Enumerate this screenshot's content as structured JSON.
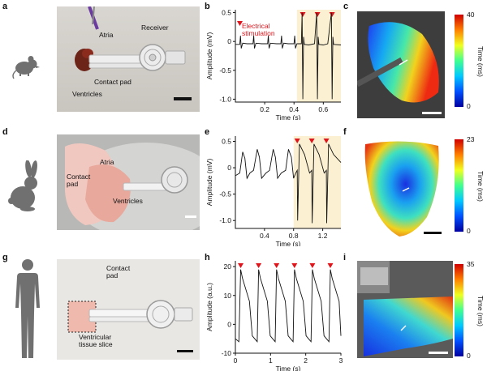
{
  "figure": {
    "panel_letters": [
      "a",
      "b",
      "c",
      "d",
      "e",
      "f",
      "g",
      "h",
      "i"
    ],
    "panel_a": {
      "labels": {
        "atria": "Atria",
        "receiver": "Receiver",
        "contact_pad": "Contact pad",
        "ventricles": "Ventricles"
      }
    },
    "panel_b": {
      "ylabel": "Amplitude (mV)",
      "xlabel": "Time (s)",
      "annotation": "Electrical\nstimulation"
    },
    "panel_c": {
      "colorbar_title": "Time (ms)",
      "colorbar_max": "40",
      "colorbar_min": "0"
    },
    "panel_d": {
      "labels": {
        "atria": "Atria",
        "contact_pad": "Contact\npad",
        "ventricles": "Ventricles"
      }
    },
    "panel_e": {
      "ylabel": "Amplitude (mV)",
      "xlabel": "Time (s)"
    },
    "panel_f": {
      "colorbar_title": "Time (ms)",
      "colorbar_max": "23",
      "colorbar_min": "0"
    },
    "panel_g": {
      "labels": {
        "contact_pad": "Contact\npad",
        "ventricular_slice": "Ventricular\ntissue slice"
      }
    },
    "panel_h": {
      "ylabel": "Amplitude (a.u.)",
      "xlabel": "Time (s)"
    },
    "panel_i": {
      "colorbar_title": "Time (ms)",
      "colorbar_max": "35",
      "colorbar_min": "0"
    },
    "colors": {
      "highlight": "#fbf0d2",
      "stim_marker": "#e0141b",
      "trace": "#111111"
    }
  },
  "chart_data": [
    {
      "type": "line",
      "panel": "b",
      "xlabel": "Time (s)",
      "ylabel": "Amplitude (mV)",
      "xlim": [
        0,
        0.72
      ],
      "ylim": [
        -1.05,
        0.55
      ],
      "xticks": [
        0.2,
        0.4,
        0.6
      ],
      "yticks": [
        0.5,
        0,
        -0.5,
        -1.0
      ],
      "ytick_labels": [
        "0.5",
        "0",
        "-0.5",
        "-1.0"
      ],
      "stimulation_start": 0.42,
      "stimulation_times": [
        0.46,
        0.56,
        0.66
      ],
      "series": [
        {
          "x": [
            0,
            0.03,
            0.035,
            0.04,
            0.05,
            0.08,
            0.12,
            0.125,
            0.13,
            0.14,
            0.18,
            0.22,
            0.225,
            0.23,
            0.24,
            0.28,
            0.31,
            0.315,
            0.32,
            0.33,
            0.36,
            0.4,
            0.405,
            0.41,
            0.42,
            0.45,
            0.455,
            0.46,
            0.465,
            0.47,
            0.5,
            0.54,
            0.555,
            0.56,
            0.565,
            0.57,
            0.6,
            0.63,
            0.655,
            0.66,
            0.665,
            0.67,
            0.72
          ],
          "y": [
            -0.05,
            -0.05,
            0.1,
            -0.12,
            -0.03,
            -0.04,
            -0.04,
            0.1,
            -0.12,
            -0.03,
            -0.04,
            -0.04,
            0.1,
            -0.12,
            -0.03,
            -0.04,
            -0.04,
            0.1,
            -0.12,
            -0.03,
            -0.04,
            -0.04,
            0.1,
            -0.12,
            -0.04,
            -0.04,
            0.5,
            -1.0,
            0.08,
            -0.05,
            -0.06,
            -0.04,
            0.5,
            -1.0,
            0.08,
            -0.05,
            -0.06,
            -0.04,
            0.5,
            -1.0,
            0.08,
            -0.05,
            -0.06
          ]
        }
      ]
    },
    {
      "type": "line",
      "panel": "e",
      "xlabel": "Time (s)",
      "ylabel": "Amplitude (mV)",
      "xlim": [
        0,
        1.45
      ],
      "ylim": [
        -1.15,
        0.6
      ],
      "xticks": [
        0.4,
        0.8,
        1.2
      ],
      "yticks": [
        0.5,
        0,
        -0.5,
        -1.0
      ],
      "ytick_labels": [
        "0.5",
        "0",
        "-0.5",
        "-1.0"
      ],
      "stimulation_start": 0.8,
      "stimulation_times": [
        0.85,
        1.05,
        1.25
      ],
      "series": [
        {
          "x": [
            0,
            0.06,
            0.1,
            0.13,
            0.16,
            0.2,
            0.25,
            0.3,
            0.33,
            0.36,
            0.42,
            0.47,
            0.52,
            0.55,
            0.58,
            0.63,
            0.69,
            0.73,
            0.77,
            0.8,
            0.83,
            0.85,
            0.855,
            0.88,
            0.95,
            1.02,
            1.05,
            1.055,
            1.08,
            1.15,
            1.22,
            1.25,
            1.255,
            1.28,
            1.35,
            1.45
          ],
          "y": [
            -0.15,
            -0.1,
            0.3,
            0.18,
            -0.2,
            -0.1,
            -0.05,
            0.35,
            0.2,
            -0.2,
            -0.1,
            -0.05,
            0.35,
            0.2,
            -0.2,
            -0.1,
            -0.05,
            0.35,
            0.2,
            -0.2,
            -0.1,
            -0.05,
            -1.0,
            0.45,
            0.25,
            -0.1,
            -0.05,
            -1.05,
            0.45,
            0.25,
            -0.1,
            -0.05,
            -1.05,
            0.45,
            0.25,
            0.1
          ]
        }
      ]
    },
    {
      "type": "line",
      "panel": "h",
      "xlabel": "Time (s)",
      "ylabel": "Amplitude (a.u.)",
      "xlim": [
        0,
        3.0
      ],
      "ylim": [
        -10,
        22
      ],
      "xticks": [
        0,
        1,
        2,
        3
      ],
      "yticks": [
        20,
        10,
        0,
        -10
      ],
      "ytick_labels": [
        "20",
        "10",
        "0",
        "-10"
      ],
      "stimulation_start": 0.0,
      "stimulation_times": [
        0.15,
        0.66,
        1.17,
        1.68,
        2.19,
        2.7
      ],
      "series": [
        {
          "x": [
            0,
            0.1,
            0.15,
            0.2,
            0.3,
            0.4,
            0.48,
            0.55,
            0.62,
            0.66,
            0.71,
            0.81,
            0.91,
            0.99,
            1.06,
            1.13,
            1.17,
            1.22,
            1.32,
            1.42,
            1.5,
            1.57,
            1.64,
            1.68,
            1.73,
            1.83,
            1.93,
            2.01,
            2.08,
            2.15,
            2.19,
            2.24,
            2.34,
            2.44,
            2.52,
            2.59,
            2.66,
            2.7,
            2.75,
            2.85,
            2.95,
            3.0
          ],
          "y": [
            -5,
            -6,
            19,
            16,
            12,
            8,
            -4,
            -5,
            -6,
            19,
            16,
            12,
            8,
            -4,
            -5,
            -6,
            19,
            16,
            12,
            8,
            -4,
            -5,
            -6,
            19,
            16,
            12,
            8,
            -4,
            -5,
            -6,
            19,
            16,
            12,
            8,
            -4,
            -5,
            -6,
            19,
            16,
            12,
            8,
            -4
          ]
        }
      ]
    }
  ]
}
